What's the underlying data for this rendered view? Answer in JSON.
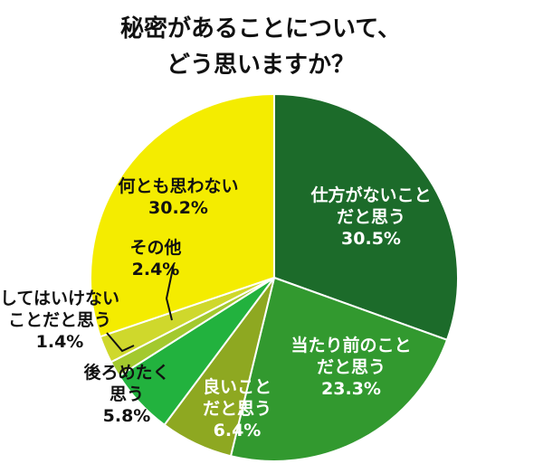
{
  "chart_data": {
    "type": "pie",
    "title_lines": [
      "秘密があることについて、",
      "どう思いますか？"
    ],
    "slices": [
      {
        "name": "仕方がないことだと思う",
        "label_lines": [
          "仕方がないこと",
          "だと思う"
        ],
        "percent_label": "30.5%",
        "value": 30.5,
        "color": "#1c6b2a",
        "label_color": "#ffffff"
      },
      {
        "name": "当たり前のことだと思う",
        "label_lines": [
          "当たり前のこと",
          "だと思う"
        ],
        "percent_label": "23.3%",
        "value": 23.3,
        "color": "#32992f",
        "label_color": "#ffffff"
      },
      {
        "name": "良いことだと思う",
        "label_lines": [
          "良いこと",
          "だと思う"
        ],
        "percent_label": "6.4%",
        "value": 6.4,
        "color": "#8ea821",
        "label_color": "#ffffff"
      },
      {
        "name": "後ろめたく思う",
        "label_lines": [
          "後ろめたく",
          "思う"
        ],
        "percent_label": "5.8%",
        "value": 5.8,
        "color": "#22b23e",
        "label_color": "#111111"
      },
      {
        "name": "してはいけないことだと思う",
        "label_lines": [
          "してはいけない",
          "ことだと思う"
        ],
        "percent_label": "1.4%",
        "value": 1.4,
        "color": "#a3c92e",
        "label_color": "#111111"
      },
      {
        "name": "その他",
        "label_lines": [
          "その他"
        ],
        "percent_label": "2.4%",
        "value": 2.4,
        "color": "#cfd82c",
        "label_color": "#111111"
      },
      {
        "name": "何とも思わない",
        "label_lines": [
          "何とも思わない"
        ],
        "percent_label": "30.2%",
        "value": 30.2,
        "color": "#f4ec00",
        "label_color": "#111111"
      }
    ]
  }
}
